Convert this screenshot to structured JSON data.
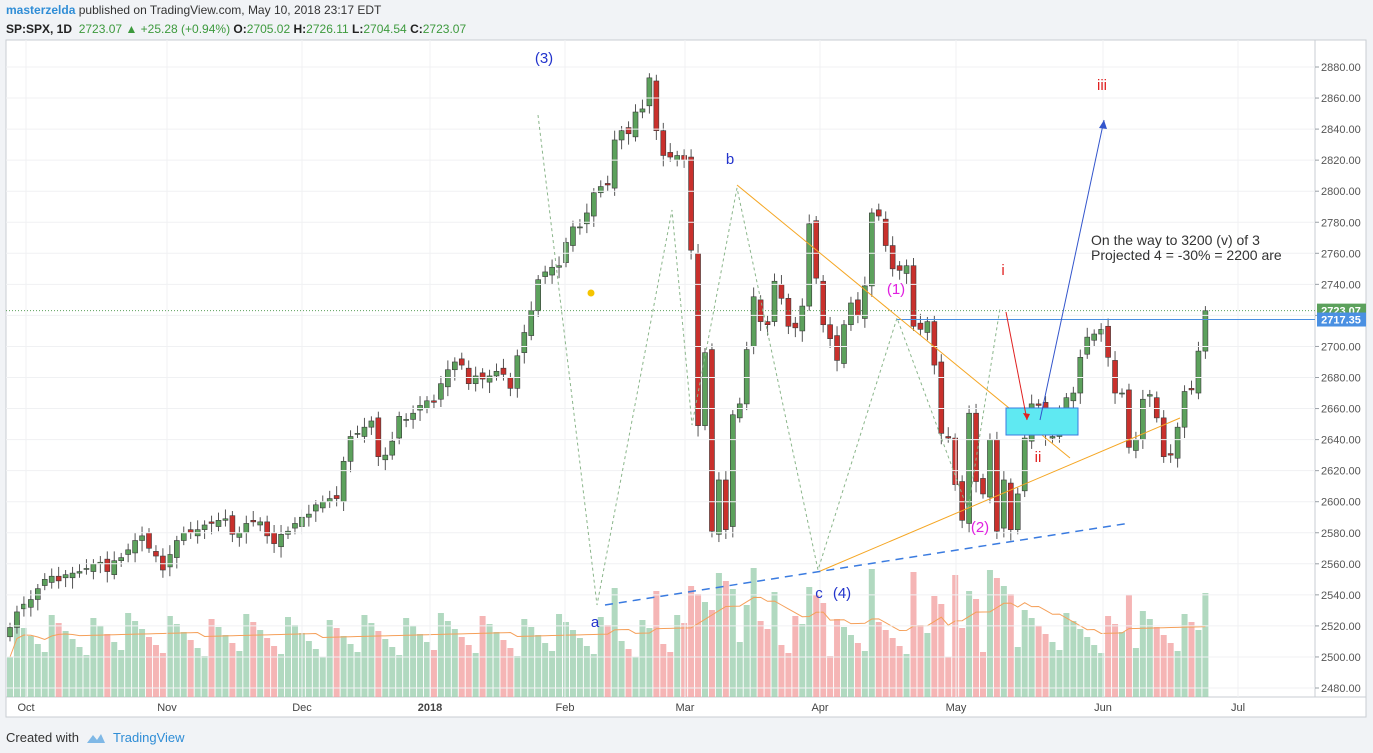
{
  "header": {
    "user": "masterzelda",
    "published": "published on TradingView.com, May 10, 2018 23:17 EDT",
    "symbol": "SP:SPX, 1D",
    "last": "2723.07",
    "change": "+25.28 (+0.94%)",
    "open_label": "O:",
    "open": "2705.02",
    "high_label": "H:",
    "high": "2726.11",
    "low_label": "L:",
    "low": "2704.54",
    "close_label": "C:",
    "close": "2723.07"
  },
  "footer": {
    "created_with": "Created with",
    "brand": "TradingView"
  },
  "colors": {
    "up": "#5ca15c",
    "down": "#c9302c",
    "up_vol": "#9ed0b0",
    "down_vol": "#f2a3a3",
    "orange": "#f5a623",
    "blue": "#3355cc"
  },
  "chart_data": {
    "type": "candlestick",
    "x_labels": [
      "Oct",
      "Nov",
      "Dec",
      "2018",
      "Feb",
      "Mar",
      "Apr",
      "May",
      "Jun",
      "Jul"
    ],
    "y_ticks": [
      "2880.00",
      "2860.00",
      "2840.00",
      "2820.00",
      "2800.00",
      "2780.00",
      "2760.00",
      "2740.00",
      "2720.00",
      "2700.00",
      "2680.00",
      "2660.00",
      "2640.00",
      "2620.00",
      "2600.00",
      "2580.00",
      "2560.00",
      "2540.00",
      "2520.00",
      "2500.00",
      "2480.00"
    ],
    "ylim": [
      2475,
      2892
    ],
    "price_labels": [
      {
        "value": 2723.07,
        "text": "2723.07",
        "color": "#5ca15c"
      },
      {
        "value": 2717.35,
        "text": "2717.35",
        "color": "#4a90e2"
      }
    ],
    "closes": [
      2519,
      2529,
      2534,
      2537,
      2544,
      2550,
      2552,
      2549,
      2553,
      2554,
      2555,
      2557,
      2560,
      2561,
      2555,
      2562,
      2564,
      2569,
      2575,
      2578,
      2570,
      2565,
      2556,
      2566,
      2575,
      2580,
      2580,
      2582,
      2585,
      2586,
      2588,
      2589,
      2579,
      2580,
      2586,
      2587,
      2587,
      2578,
      2573,
      2579,
      2581,
      2586,
      2590,
      2592,
      2598,
      2600,
      2602,
      2602,
      2626,
      2642,
      2644,
      2648,
      2652,
      2629,
      2630,
      2639,
      2655,
      2653,
      2657,
      2662,
      2665,
      2664,
      2676,
      2685,
      2690,
      2688,
      2676,
      2681,
      2679,
      2681,
      2684,
      2682,
      2673,
      2694,
      2709,
      2723,
      2743,
      2748,
      2751,
      2752,
      2767,
      2777,
      2777,
      2786,
      2799,
      2803,
      2804,
      2833,
      2839,
      2837,
      2851,
      2853,
      2873,
      2839,
      2823,
      2822,
      2823,
      2820,
      2762,
      2649,
      2696,
      2581,
      2614,
      2582,
      2656,
      2663,
      2698,
      2732,
      2716,
      2714,
      2742,
      2731,
      2713,
      2712,
      2726,
      2779,
      2744,
      2714,
      2705,
      2691,
      2714,
      2728,
      2720,
      2739,
      2786,
      2784,
      2765,
      2750,
      2749,
      2752,
      2713,
      2711,
      2716,
      2688,
      2644,
      2641,
      2611,
      2588,
      2657,
      2613,
      2605,
      2640,
      2581,
      2614,
      2582,
      2605,
      2641,
      2663,
      2662,
      2643,
      2642,
      2656,
      2667,
      2670,
      2693,
      2706,
      2708,
      2711,
      2693,
      2670,
      2670,
      2635,
      2640,
      2666,
      2669,
      2654,
      2629,
      2630,
      2648,
      2671,
      2672,
      2697,
      2723
    ],
    "overlays": {
      "wave_labels": [
        {
          "text": "(3)",
          "color": "#2233cc"
        },
        {
          "text": "a",
          "color": "#2233cc"
        },
        {
          "text": "b",
          "color": "#2233cc"
        },
        {
          "text": "c",
          "color": "#2233cc"
        },
        {
          "text": "(4)",
          "color": "#2233cc"
        },
        {
          "text": "(1)",
          "color": "#e020e0"
        },
        {
          "text": "(2)",
          "color": "#e020e0"
        },
        {
          "text": "i",
          "color": "#e02020"
        },
        {
          "text": "ii",
          "color": "#e02020"
        },
        {
          "text": "iii",
          "color": "#e02020"
        }
      ],
      "note_line1": "On the way to 3200 (v) of 3",
      "note_line2": "Projected 4 = -30% = 2200 are"
    }
  }
}
